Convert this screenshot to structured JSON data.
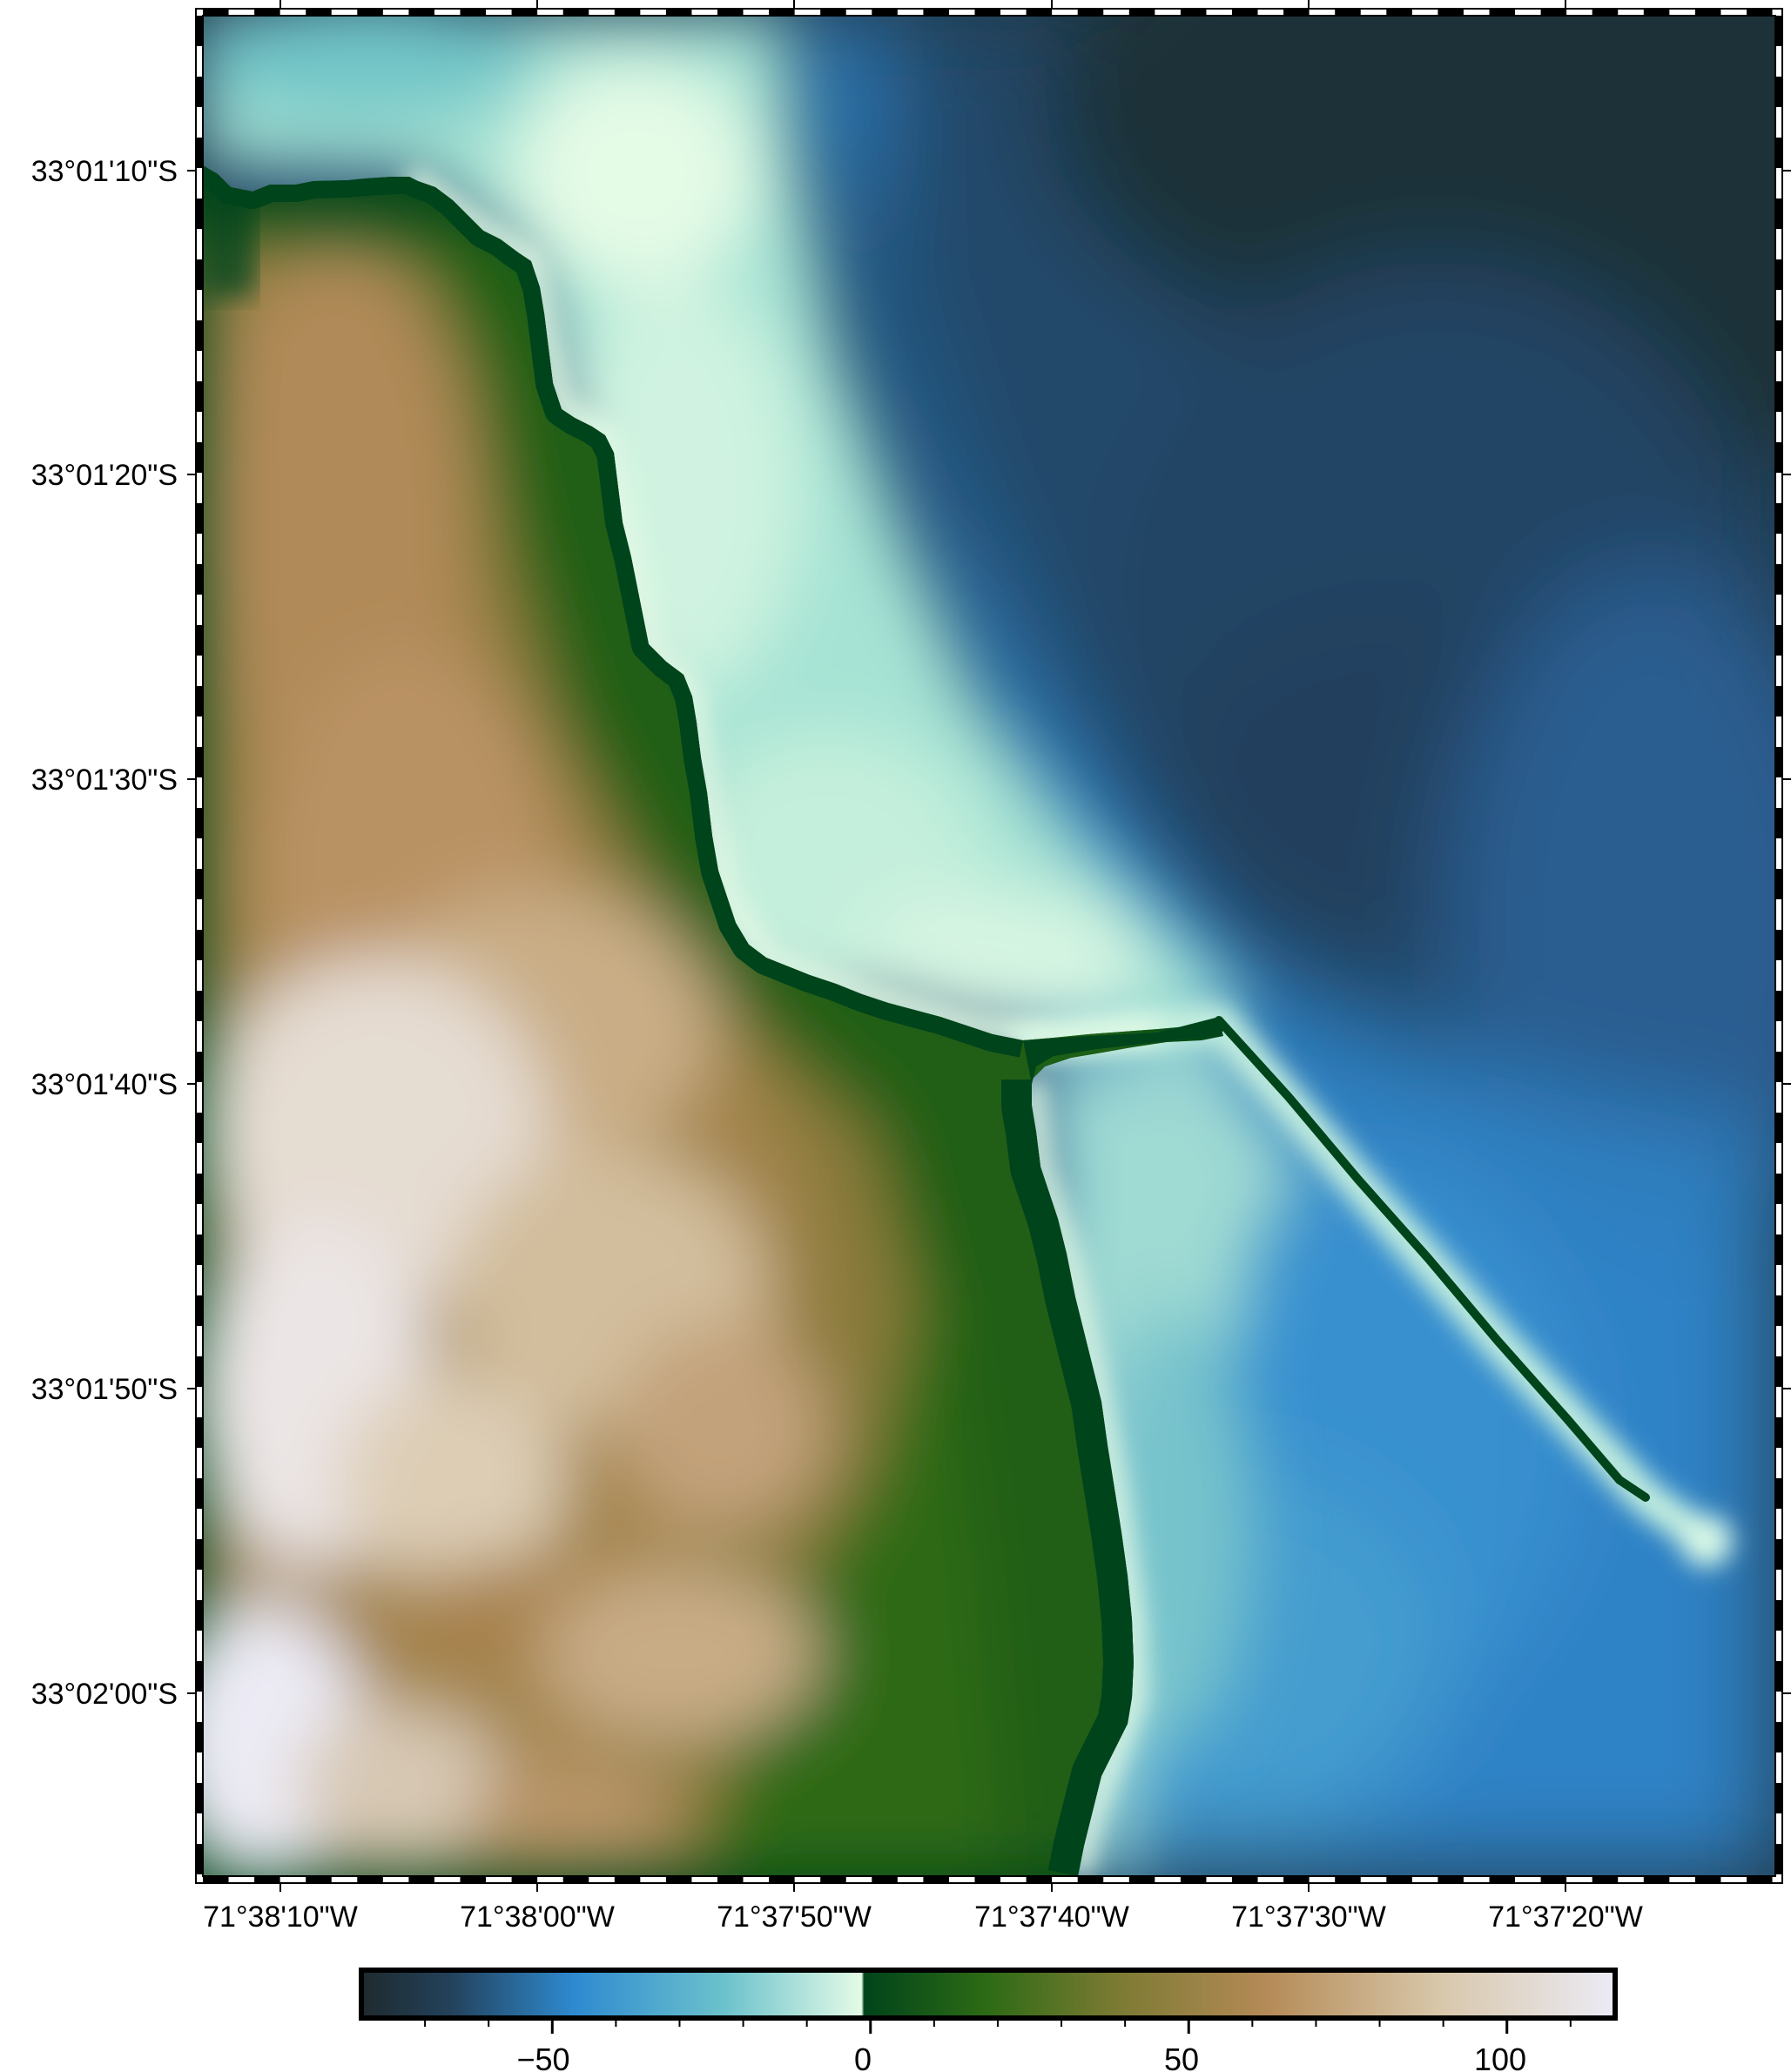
{
  "map": {
    "type": "relief-map",
    "projection": "geographic",
    "frame_style": "fancy-checkered",
    "region": {
      "lon_min": "71°38'12\"W",
      "lon_max": "71°37'11\"W",
      "lat_max": "33°01'05\"S",
      "lat_min": "33°02'06\"S"
    },
    "features": [
      {
        "id": "coastline-land",
        "description": "elevated coastal terrain (green to tan to white)"
      },
      {
        "id": "shallow-shelf",
        "description": "light cyan shallow water near coast"
      },
      {
        "id": "deep-water",
        "description": "dark blue offshore water"
      },
      {
        "id": "breakwater",
        "description": "long narrow jetty extending southeast into the sea"
      }
    ]
  },
  "axes": {
    "lat_ticks": [
      "33°01'10\"S",
      "33°01'20\"S",
      "33°01'30\"S",
      "33°01'40\"S",
      "33°01'50\"S",
      "33°02'00\"S"
    ],
    "lon_ticks": [
      "71°38'10\"W",
      "71°38'00\"W",
      "71°37'50\"W",
      "71°37'40\"W",
      "71°37'30\"W",
      "71°37'20\"W"
    ]
  },
  "colorbar": {
    "colormap": "oleron",
    "min": -80,
    "max": 117,
    "major_ticks": [
      -50,
      0,
      50,
      100
    ],
    "minor_ticks": [
      -70,
      -60,
      -40,
      -30,
      -20,
      -10,
      10,
      20,
      30,
      40,
      60,
      70,
      80,
      90,
      110
    ],
    "tick_labels": [
      "−50",
      "0",
      "50",
      "100"
    ],
    "colors": {
      "deep": "#1f2a2e",
      "mid_blue": "#2e8ad0",
      "shallow": "#e4fbe6",
      "low_land": "#00441b",
      "green": "#2e6b15",
      "tan": "#b48a56",
      "high": "#ecebf5"
    }
  }
}
